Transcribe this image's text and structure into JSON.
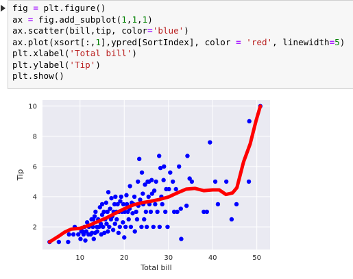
{
  "cell": {
    "marker_icon": "play-triangle-icon",
    "code_lines": [
      [
        {
          "t": "fig "
        },
        {
          "t": "=",
          "c": "op"
        },
        {
          "t": " plt.figure()"
        }
      ],
      [
        {
          "t": "ax "
        },
        {
          "t": "=",
          "c": "op"
        },
        {
          "t": " fig.add_subplot("
        },
        {
          "t": "1",
          "c": "num"
        },
        {
          "t": ","
        },
        {
          "t": "1",
          "c": "num"
        },
        {
          "t": ","
        },
        {
          "t": "1",
          "c": "num"
        },
        {
          "t": ")"
        }
      ],
      [
        {
          "t": "ax.scatter(bill,tip, color"
        },
        {
          "t": "=",
          "c": "op"
        },
        {
          "t": "'blue'",
          "c": "str"
        },
        {
          "t": ")"
        }
      ],
      [
        {
          "t": "ax.plot(xsort[:,"
        },
        {
          "t": "1",
          "c": "num"
        },
        {
          "t": "],ypred[SortIndex], color "
        },
        {
          "t": "=",
          "c": "op"
        },
        {
          "t": " "
        },
        {
          "t": "'red'",
          "c": "str"
        },
        {
          "t": ", linewidth"
        },
        {
          "t": "=",
          "c": "op"
        },
        {
          "t": "5",
          "c": "num"
        },
        {
          "t": ")"
        }
      ],
      [
        {
          "t": "plt.xlabel("
        },
        {
          "t": "'Total bill'",
          "c": "str"
        },
        {
          "t": ")"
        }
      ],
      [
        {
          "t": "plt.ylabel("
        },
        {
          "t": "'Tip'",
          "c": "str"
        },
        {
          "t": ")"
        }
      ],
      [
        {
          "t": "plt.show()"
        }
      ]
    ]
  },
  "chart_data": {
    "type": "scatter",
    "xlabel": "Total bill",
    "ylabel": "Tip",
    "xlim": [
      1.5,
      53
    ],
    "ylim": [
      0.5,
      10.4
    ],
    "xticks": [
      10,
      20,
      30,
      40,
      50
    ],
    "yticks": [
      2,
      4,
      6,
      8,
      10
    ],
    "grid": true,
    "background": "#eaeaf2",
    "scatter_color": "#0000ff",
    "line_color": "#ff0000",
    "points": [
      [
        3.1,
        1.0
      ],
      [
        5.2,
        1.0
      ],
      [
        7.3,
        1.0
      ],
      [
        7.5,
        1.5
      ],
      [
        8.5,
        1.5
      ],
      [
        8.8,
        2.0
      ],
      [
        9.6,
        1.5
      ],
      [
        10.1,
        1.2
      ],
      [
        10.3,
        1.7
      ],
      [
        10.6,
        1.7
      ],
      [
        10.8,
        1.5
      ],
      [
        11.0,
        2.0
      ],
      [
        11.2,
        1.1
      ],
      [
        11.4,
        1.7
      ],
      [
        11.6,
        2.3
      ],
      [
        11.9,
        1.5
      ],
      [
        12.0,
        2.0
      ],
      [
        12.4,
        1.5
      ],
      [
        12.6,
        2.5
      ],
      [
        12.7,
        1.6
      ],
      [
        12.9,
        2.0
      ],
      [
        13.0,
        2.5
      ],
      [
        13.1,
        1.2
      ],
      [
        13.3,
        2.7
      ],
      [
        13.4,
        1.6
      ],
      [
        13.5,
        3.0
      ],
      [
        13.8,
        2.0
      ],
      [
        13.9,
        1.7
      ],
      [
        14.1,
        2.5
      ],
      [
        14.3,
        2.0
      ],
      [
        14.5,
        3.3
      ],
      [
        14.7,
        2.2
      ],
      [
        14.8,
        1.5
      ],
      [
        15.0,
        2.8
      ],
      [
        15.0,
        3.5
      ],
      [
        15.2,
        2.0
      ],
      [
        15.4,
        3.0
      ],
      [
        15.5,
        1.6
      ],
      [
        15.7,
        2.5
      ],
      [
        15.9,
        3.6
      ],
      [
        16.0,
        2.2
      ],
      [
        16.2,
        3.0
      ],
      [
        16.3,
        1.7
      ],
      [
        16.4,
        4.3
      ],
      [
        16.6,
        2.0
      ],
      [
        16.8,
        3.2
      ],
      [
        17.0,
        2.5
      ],
      [
        17.1,
        3.9
      ],
      [
        17.3,
        2.7
      ],
      [
        17.5,
        1.8
      ],
      [
        17.6,
        3.0
      ],
      [
        17.8,
        3.5
      ],
      [
        17.9,
        2.2
      ],
      [
        18.0,
        4.0
      ],
      [
        18.2,
        3.0
      ],
      [
        18.3,
        2.5
      ],
      [
        18.5,
        3.5
      ],
      [
        18.7,
        1.6
      ],
      [
        18.8,
        3.0
      ],
      [
        19.0,
        2.0
      ],
      [
        19.1,
        3.7
      ],
      [
        19.3,
        4.0
      ],
      [
        19.5,
        3.0
      ],
      [
        19.7,
        2.3
      ],
      [
        19.8,
        3.5
      ],
      [
        20.0,
        1.3
      ],
      [
        20.1,
        3.0
      ],
      [
        20.3,
        2.0
      ],
      [
        20.5,
        4.1
      ],
      [
        20.6,
        3.5
      ],
      [
        20.8,
        3.0
      ],
      [
        21.0,
        2.5
      ],
      [
        21.2,
        3.2
      ],
      [
        21.3,
        4.7
      ],
      [
        21.5,
        2.0
      ],
      [
        21.7,
        3.6
      ],
      [
        21.9,
        2.9
      ],
      [
        22.1,
        3.5
      ],
      [
        22.3,
        4.0
      ],
      [
        22.4,
        1.7
      ],
      [
        22.7,
        3.0
      ],
      [
        22.9,
        2.5
      ],
      [
        23.1,
        5.0
      ],
      [
        23.2,
        3.4
      ],
      [
        23.4,
        6.5
      ],
      [
        23.6,
        3.8
      ],
      [
        23.9,
        2.0
      ],
      [
        24.0,
        5.6
      ],
      [
        24.2,
        4.2
      ],
      [
        24.3,
        3.5
      ],
      [
        24.5,
        2.5
      ],
      [
        24.7,
        4.8
      ],
      [
        24.9,
        3.0
      ],
      [
        25.1,
        2.0
      ],
      [
        25.3,
        5.0
      ],
      [
        25.5,
        4.0
      ],
      [
        25.6,
        5.0
      ],
      [
        25.7,
        3.5
      ],
      [
        26.0,
        3.0
      ],
      [
        26.2,
        5.1
      ],
      [
        26.3,
        4.2
      ],
      [
        26.6,
        2.0
      ],
      [
        26.8,
        4.4
      ],
      [
        27.0,
        3.5
      ],
      [
        27.2,
        5.0
      ],
      [
        27.5,
        3.0
      ],
      [
        27.9,
        6.7
      ],
      [
        28.0,
        2.0
      ],
      [
        28.2,
        5.9
      ],
      [
        28.4,
        4.0
      ],
      [
        28.6,
        3.5
      ],
      [
        28.9,
        5.1
      ],
      [
        29.0,
        6.0
      ],
      [
        29.3,
        3.0
      ],
      [
        29.5,
        4.5
      ],
      [
        29.8,
        2.0
      ],
      [
        30.1,
        4.5
      ],
      [
        30.4,
        5.6
      ],
      [
        31.0,
        5.0
      ],
      [
        31.3,
        3.0
      ],
      [
        31.7,
        4.5
      ],
      [
        32.0,
        3.0
      ],
      [
        32.4,
        6.0
      ],
      [
        32.8,
        3.2
      ],
      [
        32.9,
        1.2
      ],
      [
        34.1,
        3.4
      ],
      [
        34.3,
        6.7
      ],
      [
        34.8,
        5.2
      ],
      [
        35.3,
        5.0
      ],
      [
        38.0,
        3.0
      ],
      [
        38.7,
        3.0
      ],
      [
        39.4,
        7.6
      ],
      [
        40.6,
        5.0
      ],
      [
        41.2,
        3.5
      ],
      [
        43.1,
        5.0
      ],
      [
        44.3,
        2.5
      ],
      [
        45.4,
        3.5
      ],
      [
        48.3,
        9.0
      ],
      [
        48.2,
        5.0
      ],
      [
        50.8,
        10.0
      ]
    ],
    "line": [
      [
        3.1,
        1.0
      ],
      [
        5,
        1.35
      ],
      [
        6.5,
        1.65
      ],
      [
        8,
        1.85
      ],
      [
        10,
        1.9
      ],
      [
        12,
        2.1
      ],
      [
        14,
        2.35
      ],
      [
        16,
        2.6
      ],
      [
        18,
        2.9
      ],
      [
        20,
        3.2
      ],
      [
        22,
        3.45
      ],
      [
        24,
        3.6
      ],
      [
        26,
        3.7
      ],
      [
        28,
        3.82
      ],
      [
        30,
        3.98
      ],
      [
        32,
        4.25
      ],
      [
        34,
        4.5
      ],
      [
        36,
        4.55
      ],
      [
        38,
        4.4
      ],
      [
        40,
        4.45
      ],
      [
        41.5,
        4.45
      ],
      [
        43,
        4.15
      ],
      [
        44.5,
        4.25
      ],
      [
        45.5,
        4.6
      ],
      [
        47,
        6.3
      ],
      [
        48.5,
        7.5
      ],
      [
        49.8,
        9.0
      ],
      [
        50.8,
        10.0
      ]
    ]
  }
}
